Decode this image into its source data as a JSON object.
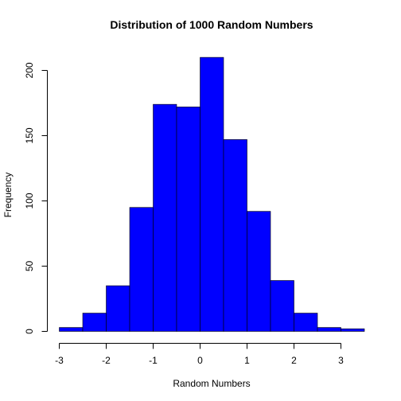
{
  "chart_data": {
    "type": "bar",
    "title": "Distribution of 1000 Random Numbers",
    "xlabel": "Random Numbers",
    "ylabel": "Frequency",
    "bin_edges": [
      -3.0,
      -2.5,
      -2.0,
      -1.5,
      -1.0,
      -0.5,
      0.0,
      0.5,
      1.0,
      1.5,
      2.0,
      2.5,
      3.0,
      3.5
    ],
    "values": [
      3,
      14,
      35,
      95,
      174,
      172,
      210,
      147,
      92,
      39,
      14,
      3,
      2
    ],
    "xlim": [
      -3.0,
      3.5
    ],
    "ylim": [
      0,
      210
    ],
    "x_ticks": [
      -3,
      -2,
      -1,
      0,
      1,
      2,
      3
    ],
    "y_ticks": [
      0,
      50,
      100,
      150,
      200
    ],
    "bar_color": "#0000ff",
    "grid": false,
    "legend": "none"
  }
}
